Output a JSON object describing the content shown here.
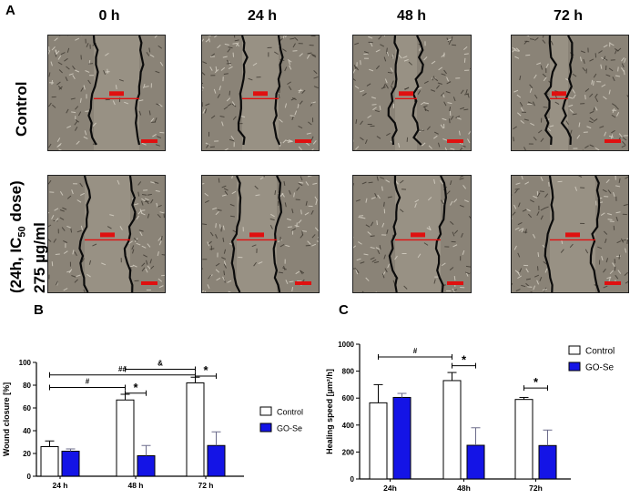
{
  "panel_labels": {
    "a": "A",
    "b": "B",
    "c": "C"
  },
  "timepoints": [
    "0 h",
    "24 h",
    "48 h",
    "72 h"
  ],
  "rows": [
    {
      "label": "Control"
    },
    {
      "label_line1": "(24h, IC",
      "label_sub": "50",
      "label_line1_end": " dose)",
      "label_line2": "275 µg/ml"
    }
  ],
  "chart_data": [
    {
      "type": "bar",
      "ylabel": "Wound closure [%]",
      "categories": [
        "24 h",
        "48 h",
        "72 h"
      ],
      "ylim": [
        0,
        100
      ],
      "yticks": [
        0,
        20,
        40,
        60,
        80,
        100
      ],
      "series": [
        {
          "name": "Control",
          "color": "#ffffff",
          "values": [
            26,
            67,
            82
          ],
          "errors": [
            5,
            5,
            5
          ]
        },
        {
          "name": "GO-Se",
          "color": "#1414e6",
          "values": [
            22,
            18,
            27
          ],
          "errors": [
            2,
            9,
            12
          ]
        }
      ],
      "legend_position": "right",
      "annotations": [
        {
          "text": "##",
          "from": "24 h/Control",
          "to": "72 h/Control",
          "level": 89
        },
        {
          "text": "&",
          "from": "48 h/Control",
          "to": "72 h/Control",
          "level": 94
        },
        {
          "text": "#",
          "from": "24 h/Control",
          "to": "48 h/Control",
          "level": 78
        },
        {
          "text": "*",
          "from": "48 h/Control",
          "to": "48 h/GO-Se",
          "level": 73
        },
        {
          "text": "*",
          "from": "72 h/Control",
          "to": "72 h/GO-Se",
          "level": 88
        }
      ]
    },
    {
      "type": "bar",
      "ylabel": "Healing speed [µm²/h]",
      "categories": [
        "24h",
        "48h",
        "72h"
      ],
      "ylim": [
        0,
        1000
      ],
      "yticks": [
        0,
        200,
        400,
        600,
        800,
        1000
      ],
      "series": [
        {
          "name": "Control",
          "color": "#ffffff",
          "values": [
            565,
            730,
            590
          ],
          "errors": [
            135,
            60,
            15
          ]
        },
        {
          "name": "GO-Se",
          "color": "#1414e6",
          "values": [
            605,
            250,
            248
          ],
          "errors": [
            30,
            130,
            115
          ]
        }
      ],
      "legend_position": "right",
      "annotations": [
        {
          "text": "#",
          "from": "24h/Control",
          "to": "48h/Control",
          "level": 905
        },
        {
          "text": "*",
          "from": "48h/Control",
          "to": "48h/GO-Se",
          "level": 840
        },
        {
          "text": "*",
          "from": "72h/Control",
          "to": "72h/GO-Se",
          "level": 675
        }
      ]
    }
  ]
}
